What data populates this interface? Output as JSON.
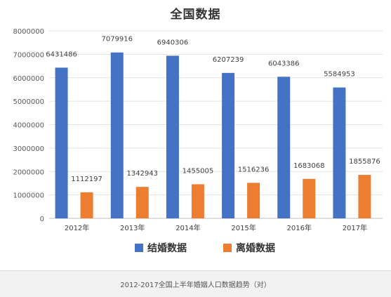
{
  "chart_data": {
    "type": "bar",
    "title": "全国数据",
    "categories": [
      "2012年",
      "2013年",
      "2014年",
      "2015年",
      "2016年",
      "2017年"
    ],
    "series": [
      {
        "name": "结婚数据",
        "color": "#4472c4",
        "values": [
          6431486,
          7079916,
          6940306,
          6207239,
          6043386,
          5584953
        ]
      },
      {
        "name": "离婚数据",
        "color": "#ed7d31",
        "values": [
          1112197,
          1342943,
          1455005,
          1516236,
          1683068,
          1855876
        ]
      }
    ],
    "value_labels": [
      [
        "6431486",
        "7079916",
        "6940306",
        "6207239",
        "6043386",
        "5584953"
      ],
      [
        "1112197",
        "1342943",
        "1455005",
        "1516236",
        "1683068",
        "1855876"
      ]
    ],
    "ylim": [
      0,
      8000000
    ],
    "yticks": [
      "0",
      "1000000",
      "2000000",
      "3000000",
      "4000000",
      "5000000",
      "6000000",
      "7000000",
      "8000000"
    ],
    "grid": true,
    "legend_position": "bottom",
    "xlabel": "",
    "ylabel": ""
  },
  "caption": "2012-2017全国上半年婚姻人口数据趋势（对）"
}
